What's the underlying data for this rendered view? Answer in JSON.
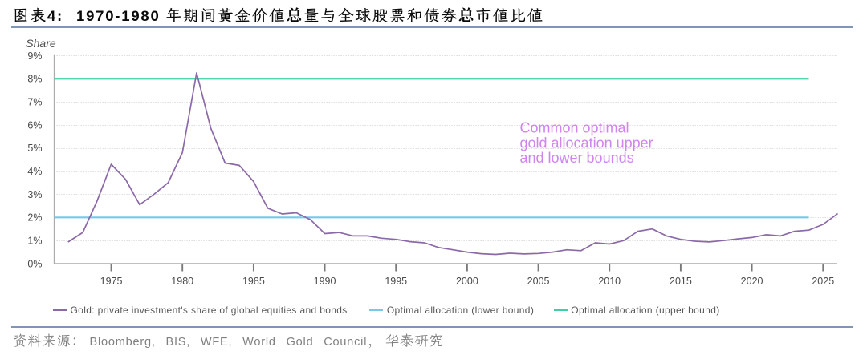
{
  "figure": {
    "label": "图表4:",
    "title": "1970-1980 年期间黄金价值总量与全球股票和债券总市值比值"
  },
  "chart_data": {
    "type": "line",
    "ylabel": "Share",
    "x_axis": {
      "ticks": [
        1975,
        1980,
        1985,
        1990,
        1995,
        2000,
        2005,
        2010,
        2015,
        2020,
        2025
      ],
      "range": [
        1971,
        2026
      ]
    },
    "y_axis": {
      "ticks": [
        "0%",
        "1%",
        "2%",
        "3%",
        "4%",
        "5%",
        "6%",
        "7%",
        "8%",
        "9%"
      ],
      "range": [
        0,
        9
      ],
      "unit": "%"
    },
    "grid": "horizontal dotted",
    "legend_position": "bottom",
    "series": [
      {
        "name": "Gold: private investment's share of global equities and bonds",
        "color": "#8B68A7",
        "x": [
          1972,
          1973,
          1974,
          1975,
          1976,
          1977,
          1978,
          1979,
          1980,
          1981,
          1982,
          1983,
          1984,
          1985,
          1986,
          1987,
          1988,
          1989,
          1990,
          1991,
          1992,
          1993,
          1994,
          1995,
          1996,
          1997,
          1998,
          1999,
          2000,
          2001,
          2002,
          2003,
          2004,
          2005,
          2006,
          2007,
          2008,
          2009,
          2010,
          2011,
          2012,
          2013,
          2014,
          2015,
          2016,
          2017,
          2018,
          2019,
          2020,
          2021,
          2022,
          2023,
          2024,
          2025,
          2026
        ],
        "values": [
          0.95,
          1.35,
          2.7,
          4.3,
          3.65,
          2.55,
          3.0,
          3.5,
          4.8,
          8.25,
          5.85,
          4.35,
          4.25,
          3.55,
          2.4,
          2.15,
          2.2,
          1.9,
          1.3,
          1.35,
          1.2,
          1.2,
          1.1,
          1.05,
          0.95,
          0.9,
          0.7,
          0.6,
          0.5,
          0.43,
          0.4,
          0.45,
          0.42,
          0.44,
          0.5,
          0.6,
          0.56,
          0.9,
          0.85,
          1.0,
          1.4,
          1.5,
          1.2,
          1.05,
          0.97,
          0.94,
          1.0,
          1.07,
          1.13,
          1.25,
          1.2,
          1.4,
          1.45,
          1.7,
          2.15
        ]
      }
    ],
    "bounds": [
      {
        "name": "Optimal allocation (lower bound)",
        "color": "#76C9ED",
        "value": 2,
        "x_start": 1971,
        "x_end": 2024
      },
      {
        "name": "Optimal allocation (upper bound)",
        "color": "#3BD0A6",
        "value": 8,
        "x_start": 1971,
        "x_end": 2024
      }
    ],
    "annotation": {
      "lines": [
        "Common optimal",
        "gold allocation upper",
        "and lower bounds"
      ],
      "color": "#D083F1"
    }
  },
  "legend": {
    "items": [
      {
        "label": "Gold: private investment's share of global equities and bonds",
        "color": "#8B68A7"
      },
      {
        "label": "Optimal allocation (lower bound)",
        "color": "#76C9ED"
      },
      {
        "label": "Optimal allocation (upper bound)",
        "color": "#3BD0A6"
      }
    ]
  },
  "footer": {
    "source_label": "资料来源：",
    "sources": "Bloomberg, BIS, WFE, World Gold Council",
    "separator": "，",
    "publisher": "华泰研究"
  }
}
